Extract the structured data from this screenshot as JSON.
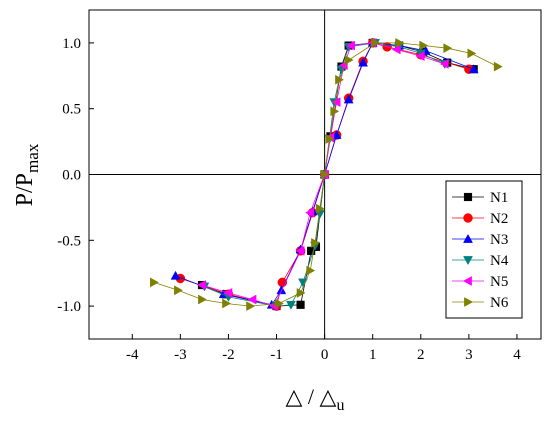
{
  "chart_data": {
    "type": "scatter",
    "xlabel": {
      "main": "△ / △",
      "sub": "u"
    },
    "ylabel": {
      "main": "P/P",
      "sub": "max"
    },
    "xlim": [
      -4.9,
      4.5
    ],
    "ylim": [
      -1.25,
      1.25
    ],
    "xticks": [
      -4,
      -3,
      -2,
      -1,
      0,
      1,
      2,
      3,
      4
    ],
    "yticks": [
      -1.0,
      -0.5,
      0.0,
      0.5,
      1.0
    ],
    "xtick_labels": [
      "-4",
      "-3",
      "-2",
      "-1",
      "0",
      "1",
      "2",
      "3",
      "4"
    ],
    "ytick_labels": [
      "-1.0",
      "-0.5",
      "0.0",
      "0.5",
      "1.0"
    ],
    "legend_position": "right",
    "series": [
      {
        "name": "N1",
        "color": "#000000",
        "marker": "square",
        "points": [
          [
            -2.55,
            -0.84
          ],
          [
            -2.05,
            -0.91
          ],
          [
            -1.0,
            -1.0
          ],
          [
            -0.5,
            -0.99
          ],
          [
            -0.28,
            -0.58
          ],
          [
            -0.18,
            -0.55
          ],
          [
            0,
            0
          ],
          [
            0.12,
            0.29
          ],
          [
            0.35,
            0.82
          ],
          [
            0.5,
            0.98
          ],
          [
            1.0,
            1.0
          ],
          [
            1.55,
            0.98
          ],
          [
            2.05,
            0.93
          ],
          [
            2.55,
            0.85
          ],
          [
            3.1,
            0.8
          ]
        ]
      },
      {
        "name": "N2",
        "color": "#ff0000",
        "marker": "circle",
        "points": [
          [
            -3.0,
            -0.79
          ],
          [
            -2.0,
            -0.91
          ],
          [
            -1.0,
            -1.0
          ],
          [
            -0.88,
            -0.82
          ],
          [
            -0.5,
            -0.58
          ],
          [
            -0.25,
            -0.29
          ],
          [
            0,
            0
          ],
          [
            0.25,
            0.3
          ],
          [
            0.5,
            0.58
          ],
          [
            0.8,
            0.86
          ],
          [
            1.0,
            1.0
          ],
          [
            1.3,
            0.97
          ],
          [
            2.0,
            0.91
          ],
          [
            3.0,
            0.8
          ]
        ]
      },
      {
        "name": "N3",
        "color": "#0000ff",
        "marker": "triangle-up",
        "points": [
          [
            -3.1,
            -0.77
          ],
          [
            -2.1,
            -0.91
          ],
          [
            -1.1,
            -0.99
          ],
          [
            -0.9,
            -0.88
          ],
          [
            -0.5,
            -0.57
          ],
          [
            -0.25,
            -0.28
          ],
          [
            0,
            0
          ],
          [
            0.25,
            0.3
          ],
          [
            0.5,
            0.57
          ],
          [
            0.8,
            0.85
          ],
          [
            1.0,
            1.0
          ],
          [
            1.55,
            0.98
          ],
          [
            2.1,
            0.94
          ],
          [
            3.1,
            0.8
          ]
        ]
      },
      {
        "name": "N4",
        "color": "#008080",
        "marker": "triangle-down",
        "points": [
          [
            -2.5,
            -0.85
          ],
          [
            -2.0,
            -0.93
          ],
          [
            -1.0,
            -1.0
          ],
          [
            -0.7,
            -0.99
          ],
          [
            -0.45,
            -0.82
          ],
          [
            -0.2,
            -0.54
          ],
          [
            -0.1,
            -0.3
          ],
          [
            0,
            0
          ],
          [
            0.1,
            0.27
          ],
          [
            0.2,
            0.55
          ],
          [
            0.35,
            0.8
          ],
          [
            0.5,
            0.97
          ],
          [
            1.05,
            1.0
          ],
          [
            1.55,
            0.97
          ],
          [
            2.0,
            0.92
          ],
          [
            2.5,
            0.84
          ]
        ]
      },
      {
        "name": "N5",
        "color": "#ff00ff",
        "marker": "triangle-left",
        "points": [
          [
            -2.55,
            -0.84
          ],
          [
            -2.0,
            -0.9
          ],
          [
            -1.5,
            -0.95
          ],
          [
            -1.05,
            -1.0
          ],
          [
            -0.5,
            -0.58
          ],
          [
            -0.3,
            -0.29
          ],
          [
            0,
            0
          ],
          [
            0.12,
            0.28
          ],
          [
            0.25,
            0.55
          ],
          [
            0.4,
            0.83
          ],
          [
            0.55,
            0.98
          ],
          [
            1.0,
            1.0
          ],
          [
            1.5,
            0.95
          ],
          [
            2.0,
            0.9
          ],
          [
            2.5,
            0.84
          ]
        ]
      },
      {
        "name": "N6",
        "color": "#808000",
        "marker": "triangle-right",
        "points": [
          [
            -3.55,
            -0.82
          ],
          [
            -3.05,
            -0.88
          ],
          [
            -2.55,
            -0.95
          ],
          [
            -2.05,
            -0.98
          ],
          [
            -1.55,
            -1.0
          ],
          [
            -0.95,
            -0.98
          ],
          [
            -0.5,
            -0.9
          ],
          [
            -0.3,
            -0.73
          ],
          [
            -0.2,
            -0.52
          ],
          [
            -0.1,
            -0.26
          ],
          [
            0,
            0
          ],
          [
            0.1,
            0.27
          ],
          [
            0.2,
            0.48
          ],
          [
            0.3,
            0.72
          ],
          [
            0.5,
            0.87
          ],
          [
            1.05,
            1.0
          ],
          [
            1.55,
            1.0
          ],
          [
            2.05,
            0.98
          ],
          [
            2.55,
            0.96
          ],
          [
            3.05,
            0.92
          ],
          [
            3.6,
            0.82
          ]
        ]
      }
    ]
  }
}
